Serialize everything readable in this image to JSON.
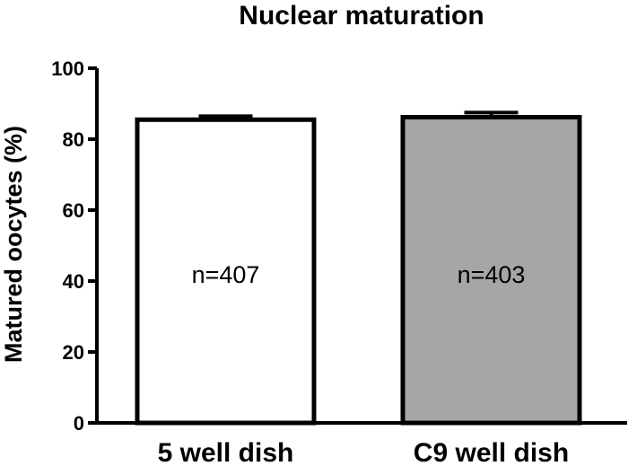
{
  "chart_data": {
    "type": "bar",
    "title": "Nuclear maturation",
    "xlabel": "",
    "ylabel": "Matured oocytes (%)",
    "ylim": [
      0,
      100
    ],
    "yticks": [
      0,
      20,
      40,
      60,
      80,
      100
    ],
    "ytick_labels": [
      "0",
      "20",
      "40",
      "60",
      "80",
      "100"
    ],
    "categories": [
      "5 well dish",
      "C9 well dish"
    ],
    "values": [
      85.5,
      86.2
    ],
    "errors": [
      1.0,
      1.3
    ],
    "annotations": [
      "n=407",
      "n=403"
    ],
    "bar_colors": [
      "#ffffff",
      "#a6a6a8"
    ],
    "edge_color": "#000000"
  }
}
